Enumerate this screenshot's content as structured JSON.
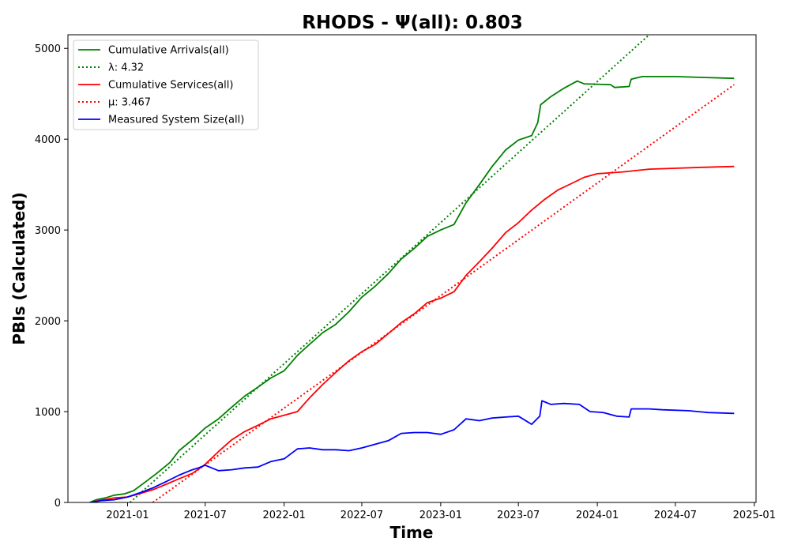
{
  "chart_data": {
    "type": "line",
    "title": "RHODS -  Ψ(all): 0.803",
    "xlabel": "Time",
    "ylabel": "PBIs (Calculated)",
    "x_ticks": [
      "2021-01",
      "2021-07",
      "2022-01",
      "2022-07",
      "2023-01",
      "2023-07",
      "2024-01",
      "2024-07",
      "2025-01"
    ],
    "y_ticks": [
      "0",
      "1000",
      "2000",
      "3000",
      "4000",
      "5000"
    ],
    "xlim": [
      "2020-08-15",
      "2025-01-05"
    ],
    "ylim": [
      0,
      5150
    ],
    "grid": false,
    "legend_position": "top-left",
    "series": [
      {
        "name": "Cumulative Arrivals(all)",
        "color": "#008000",
        "style": "solid",
        "points": [
          [
            "2020-10-05",
            0
          ],
          [
            "2020-10-20",
            30
          ],
          [
            "2020-11-10",
            50
          ],
          [
            "2020-12-01",
            80
          ],
          [
            "2020-12-25",
            95
          ],
          [
            "2021-01-15",
            130
          ],
          [
            "2021-02-10",
            220
          ],
          [
            "2021-03-10",
            320
          ],
          [
            "2021-04-10",
            440
          ],
          [
            "2021-05-01",
            570
          ],
          [
            "2021-06-01",
            690
          ],
          [
            "2021-07-01",
            820
          ],
          [
            "2021-08-01",
            920
          ],
          [
            "2021-09-01",
            1050
          ],
          [
            "2021-10-01",
            1170
          ],
          [
            "2021-11-01",
            1270
          ],
          [
            "2021-12-01",
            1370
          ],
          [
            "2022-01-01",
            1450
          ],
          [
            "2022-02-01",
            1620
          ],
          [
            "2022-03-01",
            1740
          ],
          [
            "2022-04-01",
            1870
          ],
          [
            "2022-05-01",
            1960
          ],
          [
            "2022-06-01",
            2100
          ],
          [
            "2022-07-01",
            2260
          ],
          [
            "2022-08-01",
            2380
          ],
          [
            "2022-09-01",
            2520
          ],
          [
            "2022-10-01",
            2680
          ],
          [
            "2022-11-01",
            2800
          ],
          [
            "2022-12-01",
            2930
          ],
          [
            "2023-01-01",
            3000
          ],
          [
            "2023-02-01",
            3060
          ],
          [
            "2023-03-01",
            3300
          ],
          [
            "2023-04-01",
            3500
          ],
          [
            "2023-05-01",
            3700
          ],
          [
            "2023-06-01",
            3880
          ],
          [
            "2023-07-01",
            3990
          ],
          [
            "2023-08-01",
            4040
          ],
          [
            "2023-08-15",
            4180
          ],
          [
            "2023-08-22",
            4380
          ],
          [
            "2023-09-15",
            4470
          ],
          [
            "2023-10-15",
            4560
          ],
          [
            "2023-11-15",
            4640
          ],
          [
            "2023-12-01",
            4610
          ],
          [
            "2024-02-01",
            4600
          ],
          [
            "2024-02-10",
            4570
          ],
          [
            "2024-03-15",
            4580
          ],
          [
            "2024-03-20",
            4660
          ],
          [
            "2024-04-15",
            4690
          ],
          [
            "2024-07-01",
            4690
          ],
          [
            "2024-09-01",
            4680
          ],
          [
            "2024-11-15",
            4670
          ]
        ]
      },
      {
        "name": "λ: 4.32",
        "color": "#008000",
        "style": "dotted",
        "points": [
          [
            "2021-01-07",
            0
          ],
          [
            "2024-05-01",
            5150
          ]
        ]
      },
      {
        "name": "Cumulative Services(all)",
        "color": "#ff0000",
        "style": "solid",
        "points": [
          [
            "2020-10-05",
            0
          ],
          [
            "2020-11-01",
            25
          ],
          [
            "2020-12-01",
            50
          ],
          [
            "2021-01-01",
            60
          ],
          [
            "2021-02-01",
            100
          ],
          [
            "2021-03-01",
            140
          ],
          [
            "2021-04-01",
            200
          ],
          [
            "2021-05-01",
            260
          ],
          [
            "2021-06-01",
            320
          ],
          [
            "2021-07-01",
            420
          ],
          [
            "2021-08-01",
            560
          ],
          [
            "2021-09-01",
            690
          ],
          [
            "2021-10-01",
            780
          ],
          [
            "2021-11-01",
            850
          ],
          [
            "2021-12-01",
            920
          ],
          [
            "2022-01-01",
            960
          ],
          [
            "2022-02-01",
            1000
          ],
          [
            "2022-03-01",
            1150
          ],
          [
            "2022-04-01",
            1300
          ],
          [
            "2022-05-01",
            1430
          ],
          [
            "2022-06-01",
            1560
          ],
          [
            "2022-07-01",
            1660
          ],
          [
            "2022-08-01",
            1740
          ],
          [
            "2022-09-01",
            1860
          ],
          [
            "2022-10-01",
            1980
          ],
          [
            "2022-11-01",
            2080
          ],
          [
            "2022-12-01",
            2200
          ],
          [
            "2023-01-01",
            2250
          ],
          [
            "2023-02-01",
            2320
          ],
          [
            "2023-03-01",
            2500
          ],
          [
            "2023-04-01",
            2650
          ],
          [
            "2023-05-01",
            2800
          ],
          [
            "2023-06-01",
            2970
          ],
          [
            "2023-07-01",
            3080
          ],
          [
            "2023-08-01",
            3220
          ],
          [
            "2023-09-01",
            3340
          ],
          [
            "2023-10-01",
            3440
          ],
          [
            "2023-11-01",
            3510
          ],
          [
            "2023-12-01",
            3580
          ],
          [
            "2024-01-01",
            3620
          ],
          [
            "2024-03-01",
            3640
          ],
          [
            "2024-05-01",
            3670
          ],
          [
            "2024-07-01",
            3680
          ],
          [
            "2024-09-01",
            3690
          ],
          [
            "2024-11-15",
            3700
          ]
        ]
      },
      {
        "name": "μ: 3.467",
        "color": "#ff0000",
        "style": "dotted",
        "points": [
          [
            "2021-03-01",
            0
          ],
          [
            "2024-11-15",
            4600
          ]
        ]
      },
      {
        "name": "Measured System Size(all)",
        "color": "#0000ff",
        "style": "solid",
        "points": [
          [
            "2020-10-05",
            0
          ],
          [
            "2020-11-01",
            20
          ],
          [
            "2020-12-01",
            30
          ],
          [
            "2021-01-01",
            60
          ],
          [
            "2021-02-01",
            110
          ],
          [
            "2021-03-01",
            160
          ],
          [
            "2021-04-01",
            230
          ],
          [
            "2021-05-01",
            300
          ],
          [
            "2021-06-01",
            360
          ],
          [
            "2021-06-15",
            380
          ],
          [
            "2021-07-01",
            410
          ],
          [
            "2021-08-01",
            350
          ],
          [
            "2021-09-01",
            360
          ],
          [
            "2021-10-01",
            380
          ],
          [
            "2021-11-01",
            390
          ],
          [
            "2021-12-01",
            450
          ],
          [
            "2022-01-01",
            480
          ],
          [
            "2022-02-01",
            590
          ],
          [
            "2022-03-01",
            600
          ],
          [
            "2022-04-01",
            580
          ],
          [
            "2022-05-01",
            580
          ],
          [
            "2022-06-01",
            570
          ],
          [
            "2022-07-01",
            600
          ],
          [
            "2022-08-01",
            640
          ],
          [
            "2022-09-01",
            680
          ],
          [
            "2022-10-01",
            760
          ],
          [
            "2022-11-01",
            770
          ],
          [
            "2022-12-01",
            770
          ],
          [
            "2023-01-01",
            750
          ],
          [
            "2023-02-01",
            800
          ],
          [
            "2023-03-01",
            920
          ],
          [
            "2023-04-01",
            900
          ],
          [
            "2023-05-01",
            930
          ],
          [
            "2023-06-01",
            940
          ],
          [
            "2023-07-01",
            950
          ],
          [
            "2023-08-01",
            860
          ],
          [
            "2023-08-20",
            950
          ],
          [
            "2023-08-25",
            1120
          ],
          [
            "2023-09-15",
            1080
          ],
          [
            "2023-10-15",
            1090
          ],
          [
            "2023-11-20",
            1080
          ],
          [
            "2023-12-15",
            1000
          ],
          [
            "2024-01-15",
            990
          ],
          [
            "2024-02-15",
            950
          ],
          [
            "2024-03-15",
            940
          ],
          [
            "2024-03-20",
            1030
          ],
          [
            "2024-05-01",
            1030
          ],
          [
            "2024-06-01",
            1020
          ],
          [
            "2024-08-01",
            1010
          ],
          [
            "2024-09-15",
            990
          ],
          [
            "2024-11-15",
            980
          ]
        ]
      }
    ]
  }
}
